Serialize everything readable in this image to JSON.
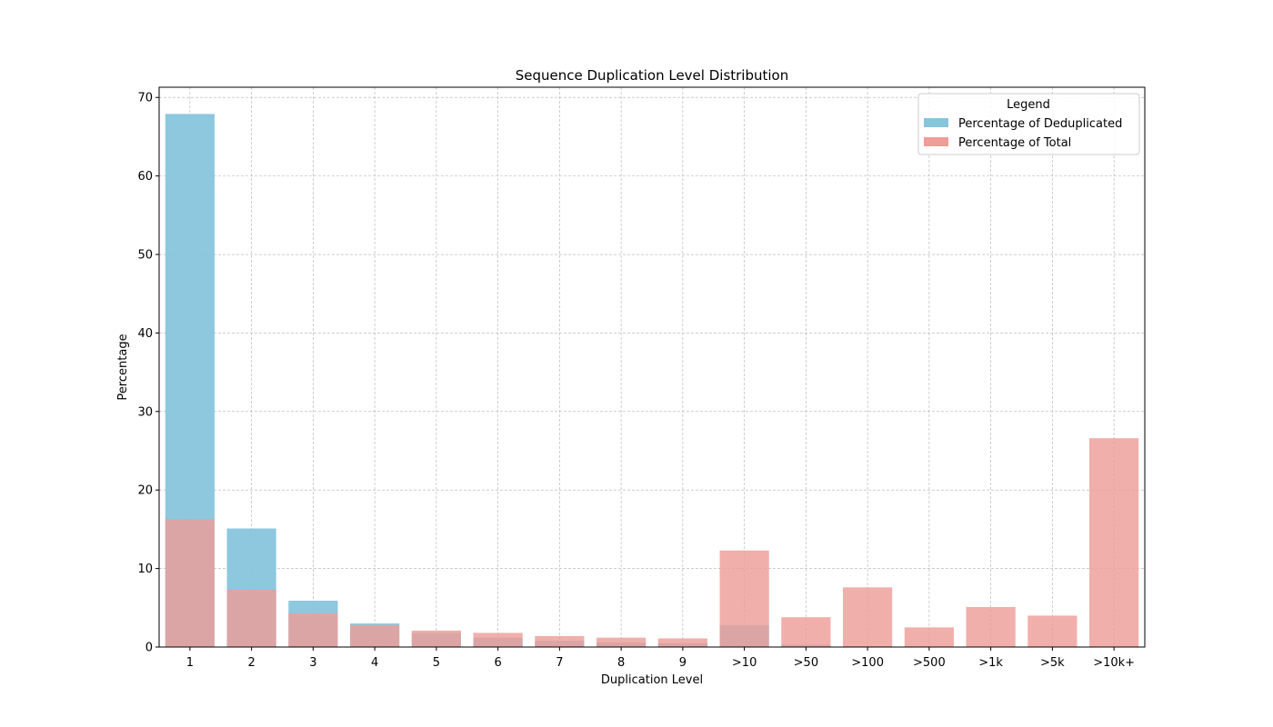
{
  "chart_data": {
    "type": "bar",
    "title": "Sequence Duplication Level Distribution",
    "xlabel": "Duplication Level",
    "ylabel": "Percentage",
    "ylim": [
      0,
      71.3
    ],
    "yticks": [
      0,
      10,
      20,
      30,
      40,
      50,
      60,
      70
    ],
    "grid": true,
    "categories": [
      "1",
      "2",
      "3",
      "4",
      "5",
      "6",
      "7",
      "8",
      "9",
      ">10",
      ">50",
      ">100",
      ">500",
      ">1k",
      ">5k",
      ">10k+"
    ],
    "series": [
      {
        "name": "Percentage of Deduplicated",
        "color": "#87c5dd",
        "values": [
          67.9,
          15.1,
          5.9,
          3.0,
          1.8,
          1.2,
          0.8,
          0.6,
          0.5,
          2.8,
          0.3,
          0.1,
          0.0,
          0.0,
          0.0,
          0.0
        ]
      },
      {
        "name": "Percentage of Total",
        "color": "#ee9d98",
        "values": [
          16.3,
          7.3,
          4.3,
          2.8,
          2.1,
          1.8,
          1.4,
          1.2,
          1.1,
          12.3,
          3.8,
          7.6,
          2.5,
          5.1,
          4.0,
          26.6
        ]
      }
    ],
    "legend": {
      "title": "Legend",
      "placement": "top-right"
    }
  }
}
